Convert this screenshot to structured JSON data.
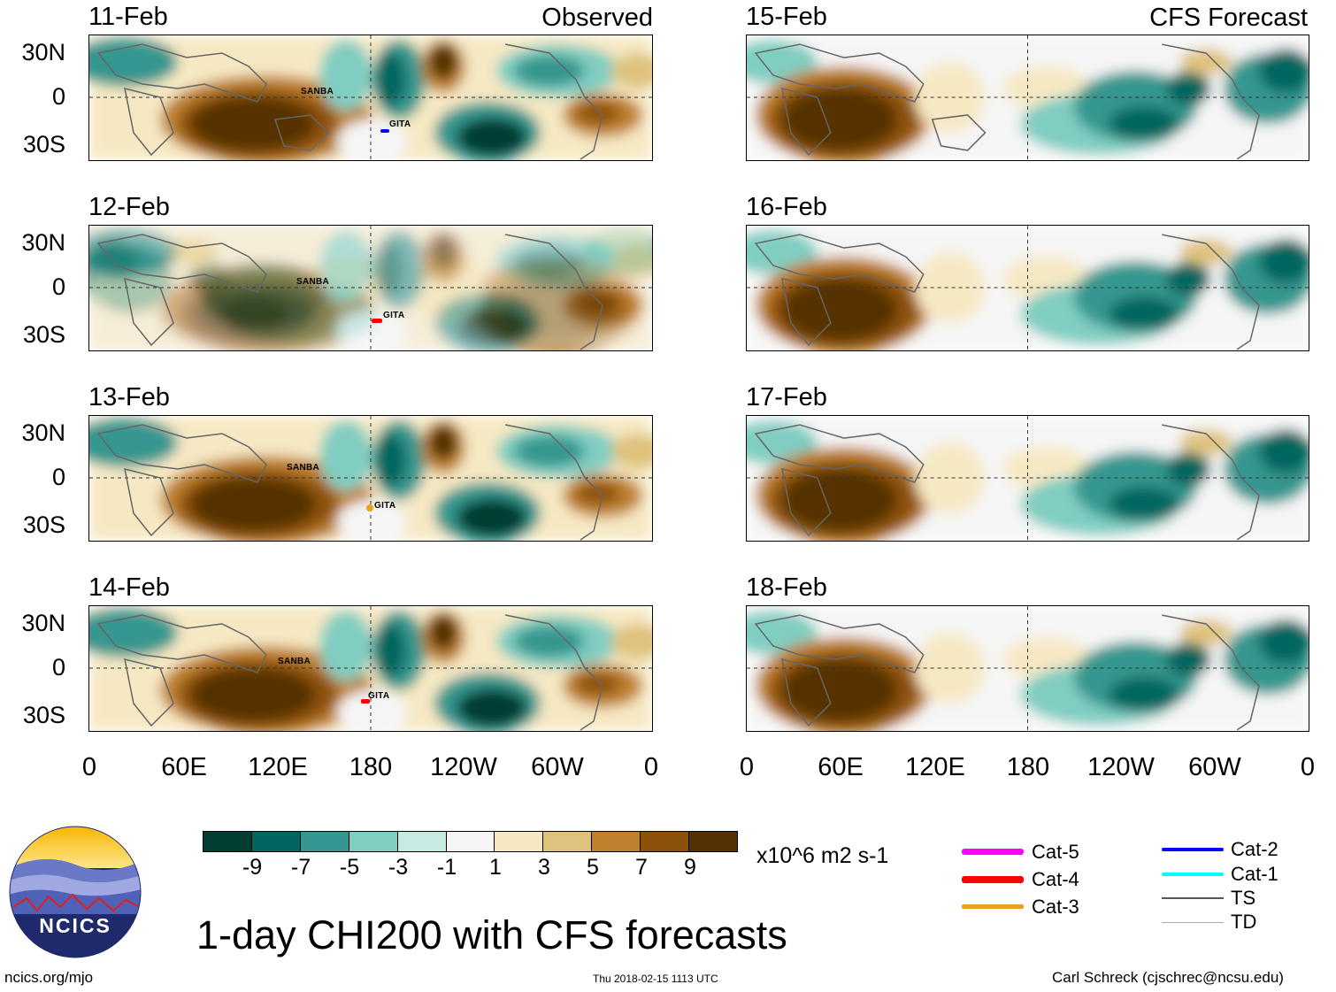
{
  "header": {
    "left_label": "Observed",
    "right_label": "CFS Forecast"
  },
  "panels_left": [
    {
      "date": "11-Feb",
      "storms": [
        "SANBA",
        "GITA"
      ]
    },
    {
      "date": "12-Feb",
      "storms": [
        "SANBA",
        "GITA"
      ]
    },
    {
      "date": "13-Feb",
      "storms": [
        "SANBA",
        "GITA"
      ]
    },
    {
      "date": "14-Feb",
      "storms": [
        "SANBA",
        "GITA"
      ]
    }
  ],
  "panels_right": [
    {
      "date": "15-Feb"
    },
    {
      "date": "16-Feb"
    },
    {
      "date": "17-Feb"
    },
    {
      "date": "18-Feb"
    }
  ],
  "lat_labels": [
    "30N",
    "0",
    "30S"
  ],
  "lon_labels": [
    "0",
    "60E",
    "120E",
    "180",
    "120W",
    "60W",
    "0"
  ],
  "colorbar": {
    "colors": [
      "#013d32",
      "#01665e",
      "#35978f",
      "#80cdc1",
      "#c7eae5",
      "#f5f5f5",
      "#f6e8c3",
      "#dfc27d",
      "#bf812d",
      "#8c510a",
      "#543005"
    ],
    "ticks": [
      "-9",
      "-7",
      "-5",
      "-3",
      "-1",
      "1",
      "3",
      "5",
      "7",
      "9"
    ],
    "units": "x10^6 m2 s-1"
  },
  "legend": {
    "items": [
      {
        "label": "Cat-5",
        "color": "#ff00ff"
      },
      {
        "label": "Cat-4",
        "color": "#ff0000"
      },
      {
        "label": "Cat-3",
        "color": "#e8a317"
      },
      {
        "label": "Cat-2",
        "color": "#0000ff"
      },
      {
        "label": "Cat-1",
        "color": "#00ffff"
      },
      {
        "label": "TS",
        "color": "#555555"
      },
      {
        "label": "TD",
        "color": "#aaaaaa"
      }
    ]
  },
  "logo_text": "NCICS",
  "title": "1-day CHI200 with CFS forecasts",
  "footer": {
    "left": "ncics.org/mjo",
    "center": "Thu 2018-02-15 1113 UTC",
    "right": "Carl Schreck (cjschrec@ncsu.edu)"
  }
}
